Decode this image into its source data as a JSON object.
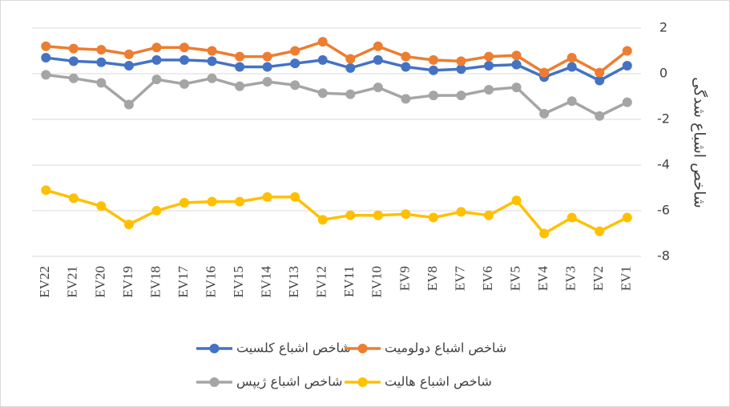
{
  "chart_data": {
    "type": "line",
    "y_label": "شاخص اشباع شدگی",
    "categories": [
      "EV22",
      "EV21",
      "EV20",
      "EV19",
      "EV18",
      "EV17",
      "EV16",
      "EV15",
      "EV14",
      "EV13",
      "EV12",
      "EV11",
      "EV10",
      "EV9",
      "EV8",
      "EV7",
      "EV6",
      "EV5",
      "EV4",
      "EV3",
      "EV2",
      "EV1"
    ],
    "series": [
      {
        "name": "شاخص اشباع کلسیت",
        "color": "#4472c4",
        "values": [
          0.7,
          0.55,
          0.5,
          0.35,
          0.6,
          0.6,
          0.55,
          0.3,
          0.3,
          0.45,
          0.6,
          0.25,
          0.6,
          0.3,
          0.15,
          0.2,
          0.35,
          0.4,
          -0.15,
          0.3,
          -0.3,
          0.35
        ]
      },
      {
        "name": "شاخص اشباع دولومیت",
        "color": "#ed7d31",
        "values": [
          1.2,
          1.1,
          1.05,
          0.85,
          1.15,
          1.15,
          1.0,
          0.75,
          0.75,
          1.0,
          1.4,
          0.65,
          1.2,
          0.75,
          0.6,
          0.55,
          0.75,
          0.8,
          0.05,
          0.7,
          0.05,
          1.0
        ]
      },
      {
        "name": "شاخص اشباع ژیپس",
        "color": "#a5a5a5",
        "values": [
          -0.05,
          -0.2,
          -0.4,
          -1.35,
          -0.25,
          -0.45,
          -0.2,
          -0.55,
          -0.35,
          -0.5,
          -0.85,
          -0.9,
          -0.6,
          -1.1,
          -0.95,
          -0.95,
          -0.7,
          -0.6,
          -1.75,
          -1.2,
          -1.85,
          -1.25
        ]
      },
      {
        "name": "شاخص اشباع هالیت",
        "color": "#ffc000",
        "values": [
          -5.1,
          -5.45,
          -5.8,
          -6.6,
          -6.0,
          -5.65,
          -5.6,
          -5.6,
          -5.4,
          -5.4,
          -6.4,
          -6.2,
          -6.2,
          -6.15,
          -6.3,
          -6.05,
          -6.2,
          -5.55,
          -7.0,
          -6.3,
          -6.9,
          -6.3
        ]
      }
    ],
    "ylim": [
      -8,
      2
    ],
    "yticks": [
      -8,
      -6,
      -4,
      -2,
      0,
      2
    ],
    "grid": true,
    "y_axis_side": "right",
    "legend": "bottom"
  }
}
